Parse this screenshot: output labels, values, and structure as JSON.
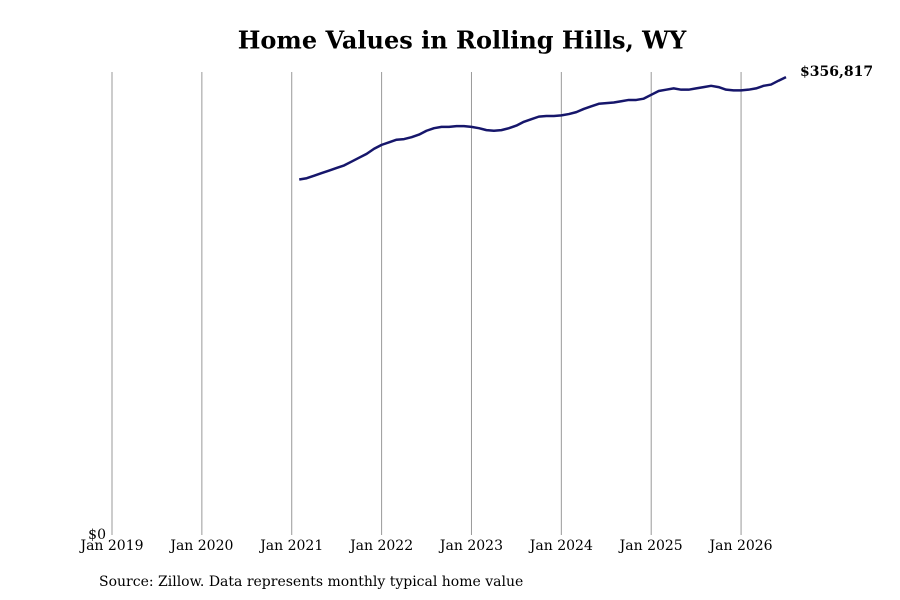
{
  "chart_data": {
    "type": "line",
    "title": "Home Values in Rolling Hills, WY",
    "source": "Source: Zillow. Data represents monthly typical home value",
    "x": [
      "2021-02",
      "2021-03",
      "2021-04",
      "2021-05",
      "2021-06",
      "2021-07",
      "2021-08",
      "2021-09",
      "2021-10",
      "2021-11",
      "2021-12",
      "2022-01",
      "2022-02",
      "2022-03",
      "2022-04",
      "2022-05",
      "2022-06",
      "2022-07",
      "2022-08",
      "2022-09",
      "2022-10",
      "2022-11",
      "2022-12",
      "2023-01",
      "2023-02",
      "2023-03",
      "2023-04",
      "2023-05",
      "2023-06",
      "2023-07",
      "2023-08",
      "2023-09",
      "2023-10",
      "2023-11",
      "2023-12",
      "2024-01",
      "2024-02",
      "2024-03",
      "2024-04",
      "2024-05",
      "2024-06",
      "2024-07",
      "2024-08",
      "2024-09",
      "2024-10",
      "2024-11",
      "2024-12",
      "2025-01",
      "2025-02",
      "2025-03",
      "2025-04",
      "2025-05",
      "2025-06",
      "2025-07",
      "2025-08",
      "2025-09",
      "2025-10",
      "2025-11",
      "2025-12",
      "2026-01",
      "2026-02",
      "2026-03",
      "2026-04",
      "2026-05",
      "2026-06",
      "2026-07"
    ],
    "series": [
      {
        "name": "Home value",
        "color": "#16166b",
        "values": [
          277000,
          278000,
          280000,
          282000,
          284000,
          286000,
          288000,
          291000,
          294000,
          297000,
          301000,
          304000,
          306000,
          308000,
          308500,
          310000,
          312000,
          315000,
          317000,
          318000,
          318000,
          318600,
          318600,
          318000,
          317000,
          315500,
          315000,
          315500,
          317000,
          319000,
          322000,
          324000,
          326000,
          326500,
          326500,
          327000,
          328000,
          329500,
          332000,
          334000,
          336000,
          336500,
          337000,
          338000,
          339000,
          339000,
          340000,
          343000,
          346000,
          347000,
          348000,
          347000,
          347000,
          348000,
          349000,
          350000,
          349000,
          347000,
          346500,
          346500,
          347000,
          348000,
          350000,
          351000,
          354000,
          356817
        ],
        "value_labels": [
          null,
          null,
          null,
          null,
          null,
          null,
          null,
          null,
          null,
          null,
          null,
          null,
          null,
          null,
          null,
          null,
          null,
          null,
          null,
          null,
          null,
          null,
          null,
          null,
          null,
          null,
          null,
          null,
          null,
          null,
          null,
          null,
          null,
          null,
          null,
          null,
          null,
          null,
          null,
          null,
          null,
          null,
          null,
          null,
          null,
          null,
          null,
          null,
          null,
          null,
          null,
          null,
          null,
          null,
          null,
          null,
          null,
          null,
          null,
          null,
          null,
          null,
          null,
          null,
          null,
          "$356,817"
        ]
      }
    ],
    "xlim": [
      "2019-01",
      "2026-07"
    ],
    "xticks": [
      {
        "value": "2019-01",
        "label": "Jan 2019"
      },
      {
        "value": "2020-01",
        "label": "Jan 2020"
      },
      {
        "value": "2021-01",
        "label": "Jan 2021"
      },
      {
        "value": "2022-01",
        "label": "Jan 2022"
      },
      {
        "value": "2023-01",
        "label": "Jan 2023"
      },
      {
        "value": "2024-01",
        "label": "Jan 2024"
      },
      {
        "value": "2025-01",
        "label": "Jan 2025"
      },
      {
        "value": "2026-01",
        "label": "Jan 2026"
      }
    ],
    "ylim": [
      0,
      360000
    ],
    "yticks": [
      {
        "value": 0,
        "label": "$0"
      }
    ],
    "grid": true
  }
}
